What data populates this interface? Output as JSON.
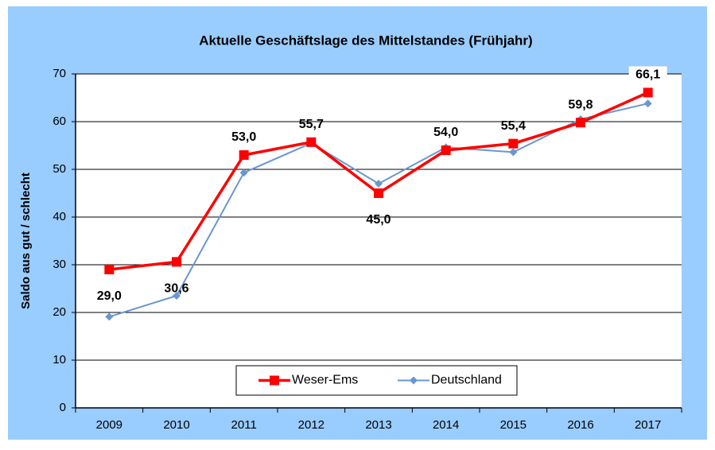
{
  "chart_data": {
    "type": "line",
    "title": "Aktuelle Geschäftslage des Mittelstandes (Frühjahr)",
    "y_label": "Saldo aus gut / schlecht",
    "categories": [
      "2009",
      "2010",
      "2011",
      "2012",
      "2013",
      "2014",
      "2015",
      "2016",
      "2017"
    ],
    "series": [
      {
        "name": "Weser-Ems",
        "color": "#ff0000",
        "marker": "square",
        "values": [
          29.0,
          30.6,
          53.0,
          55.7,
          45.0,
          54.0,
          55.4,
          59.8,
          66.1
        ],
        "value_labels": [
          "29,0",
          "30,6",
          "53,0",
          "55,7",
          "45,0",
          "54,0",
          "55,4",
          "59,8",
          "66,1"
        ]
      },
      {
        "name": "Deutschland",
        "color": "#6a96d0",
        "marker": "diamond",
        "values": [
          19.1,
          23.5,
          49.3,
          55.5,
          47.0,
          54.6,
          53.6,
          60.5,
          63.8
        ]
      }
    ],
    "ylim": [
      0,
      70
    ],
    "yticks": [
      0,
      10,
      20,
      30,
      40,
      50,
      60,
      70
    ],
    "grid": true,
    "legend": "bottom"
  }
}
